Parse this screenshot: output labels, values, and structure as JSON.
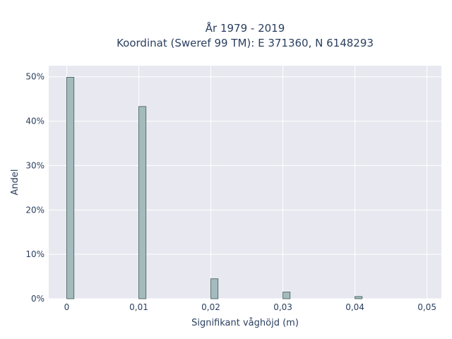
{
  "chart_data": {
    "type": "bar",
    "title": "År 1979 - 2019",
    "subtitle": "Koordinat (Sweref 99 TM): E 371360, N 6148293",
    "xlabel": "Signifikant våghöjd (m)",
    "ylabel": "Andel",
    "x": [
      0,
      0.01,
      0.02,
      0.03,
      0.04
    ],
    "values": [
      0.499,
      0.433,
      0.045,
      0.015,
      0.005
    ],
    "bin_width": 0.001,
    "xlim": [
      -0.0025,
      0.052
    ],
    "ylim": [
      0,
      0.525
    ],
    "x_ticks": [
      0,
      0.01,
      0.02,
      0.03,
      0.04,
      0.05
    ],
    "x_tick_labels": [
      "0",
      "0,01",
      "0,02",
      "0,03",
      "0,04",
      "0,05"
    ],
    "y_ticks": [
      0,
      0.1,
      0.2,
      0.3,
      0.4,
      0.5
    ],
    "y_tick_labels": [
      "0%",
      "10%",
      "20%",
      "30%",
      "40%",
      "50%"
    ],
    "grid": true,
    "colors": {
      "bar_fill": "#a3bbbd",
      "bar_stroke": "#3d5a55",
      "plot_bg": "#e8e8f0",
      "grid": "#ffffff",
      "text": "#2a3f5f"
    }
  }
}
